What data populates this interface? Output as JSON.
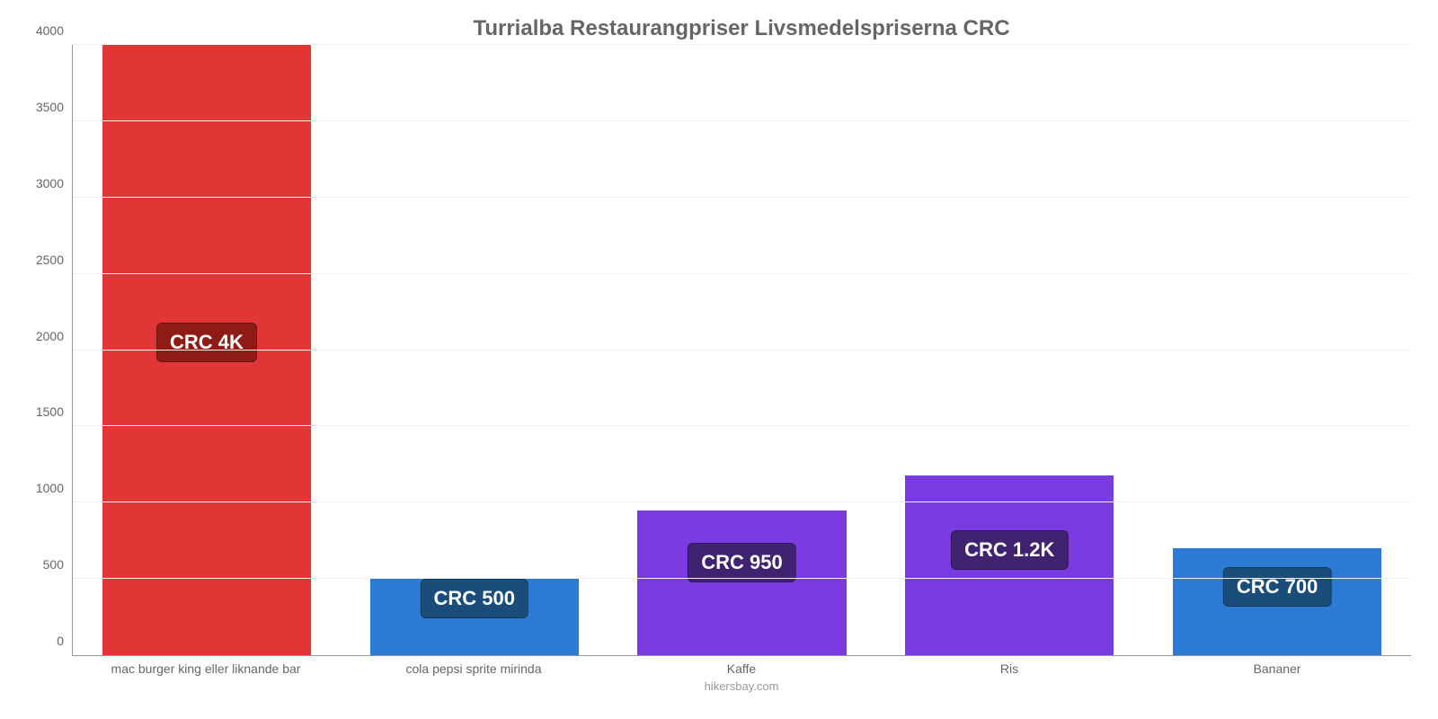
{
  "chart": {
    "type": "bar",
    "title": "Turrialba Restaurangpriser Livsmedelspriserna CRC",
    "title_fontsize": 24,
    "title_color": "#666666",
    "background_color": "#ffffff",
    "grid_color": "#f0f0f0",
    "axis_color": "#999999",
    "tick_label_color": "#666666",
    "tick_fontsize": 14,
    "ylim_min": 0,
    "ylim_max": 4000,
    "ytick_step": 500,
    "yticks": [
      0,
      500,
      1000,
      1500,
      2000,
      2500,
      3000,
      3500,
      4000
    ],
    "bar_width_pct": 78,
    "value_label_fontsize": 22,
    "value_label_text_color": "#ffffff",
    "credit": "hikersbay.com",
    "credit_color": "#999999",
    "bars": [
      {
        "category": "mac burger king eller liknande bar",
        "value": 4000,
        "display_value": "CRC 4K",
        "bar_color": "#e23636",
        "label_bg_color": "#8e1b16",
        "label_bottom_pct": 48
      },
      {
        "category": "cola pepsi sprite mirinda",
        "value": 500,
        "display_value": "CRC 500",
        "bar_color": "#2b7bd4",
        "label_bg_color": "#1b4d7a",
        "label_bottom_pct": 6
      },
      {
        "category": "Kaffe",
        "value": 950,
        "display_value": "CRC 950",
        "bar_color": "#7a3be0",
        "label_bg_color": "#3f2270",
        "label_bottom_pct": 12
      },
      {
        "category": "Ris",
        "value": 1180,
        "display_value": "CRC 1.2K",
        "bar_color": "#7a3be0",
        "label_bg_color": "#3f2270",
        "label_bottom_pct": 14
      },
      {
        "category": "Bananer",
        "value": 700,
        "display_value": "CRC 700",
        "bar_color": "#2b7bd4",
        "label_bg_color": "#1b4d7a",
        "label_bottom_pct": 8
      }
    ]
  }
}
